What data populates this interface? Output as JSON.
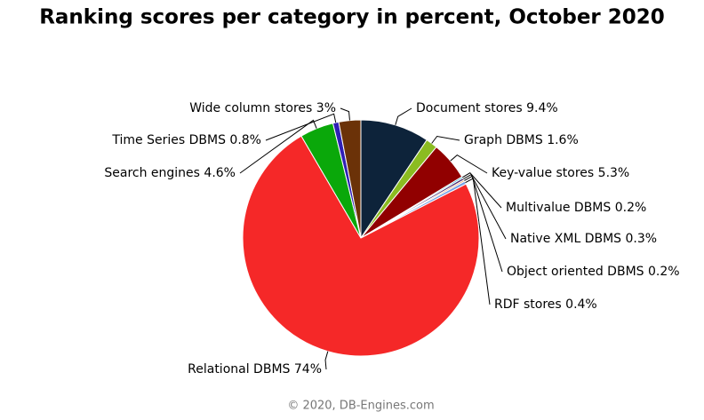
{
  "chart_data": {
    "type": "pie",
    "title": "Ranking scores per category in percent, October 2020",
    "credit": "© 2020, DB-Engines.com",
    "categories": [
      "Document stores",
      "Graph DBMS",
      "Key-value stores",
      "Multivalue DBMS",
      "Native XML DBMS",
      "Object oriented DBMS",
      "RDF stores",
      "Relational DBMS",
      "Search engines",
      "Time Series DBMS",
      "Wide column stores"
    ],
    "values": [
      9.4,
      1.6,
      5.3,
      0.2,
      0.3,
      0.2,
      0.4,
      74,
      4.6,
      0.8,
      3
    ],
    "value_labels": [
      "9.4%",
      "1.6%",
      "5.3%",
      "0.2%",
      "0.3%",
      "0.2%",
      "0.4%",
      "74%",
      "4.6%",
      "0.8%",
      "3%"
    ],
    "colors": [
      "#0d233a",
      "#8bbc21",
      "#910000",
      "#1aadce",
      "#492970",
      "#f28f43",
      "#77a1e5",
      "#f52828",
      "#0aa80a",
      "#2f1fb5",
      "#6b3208"
    ]
  }
}
